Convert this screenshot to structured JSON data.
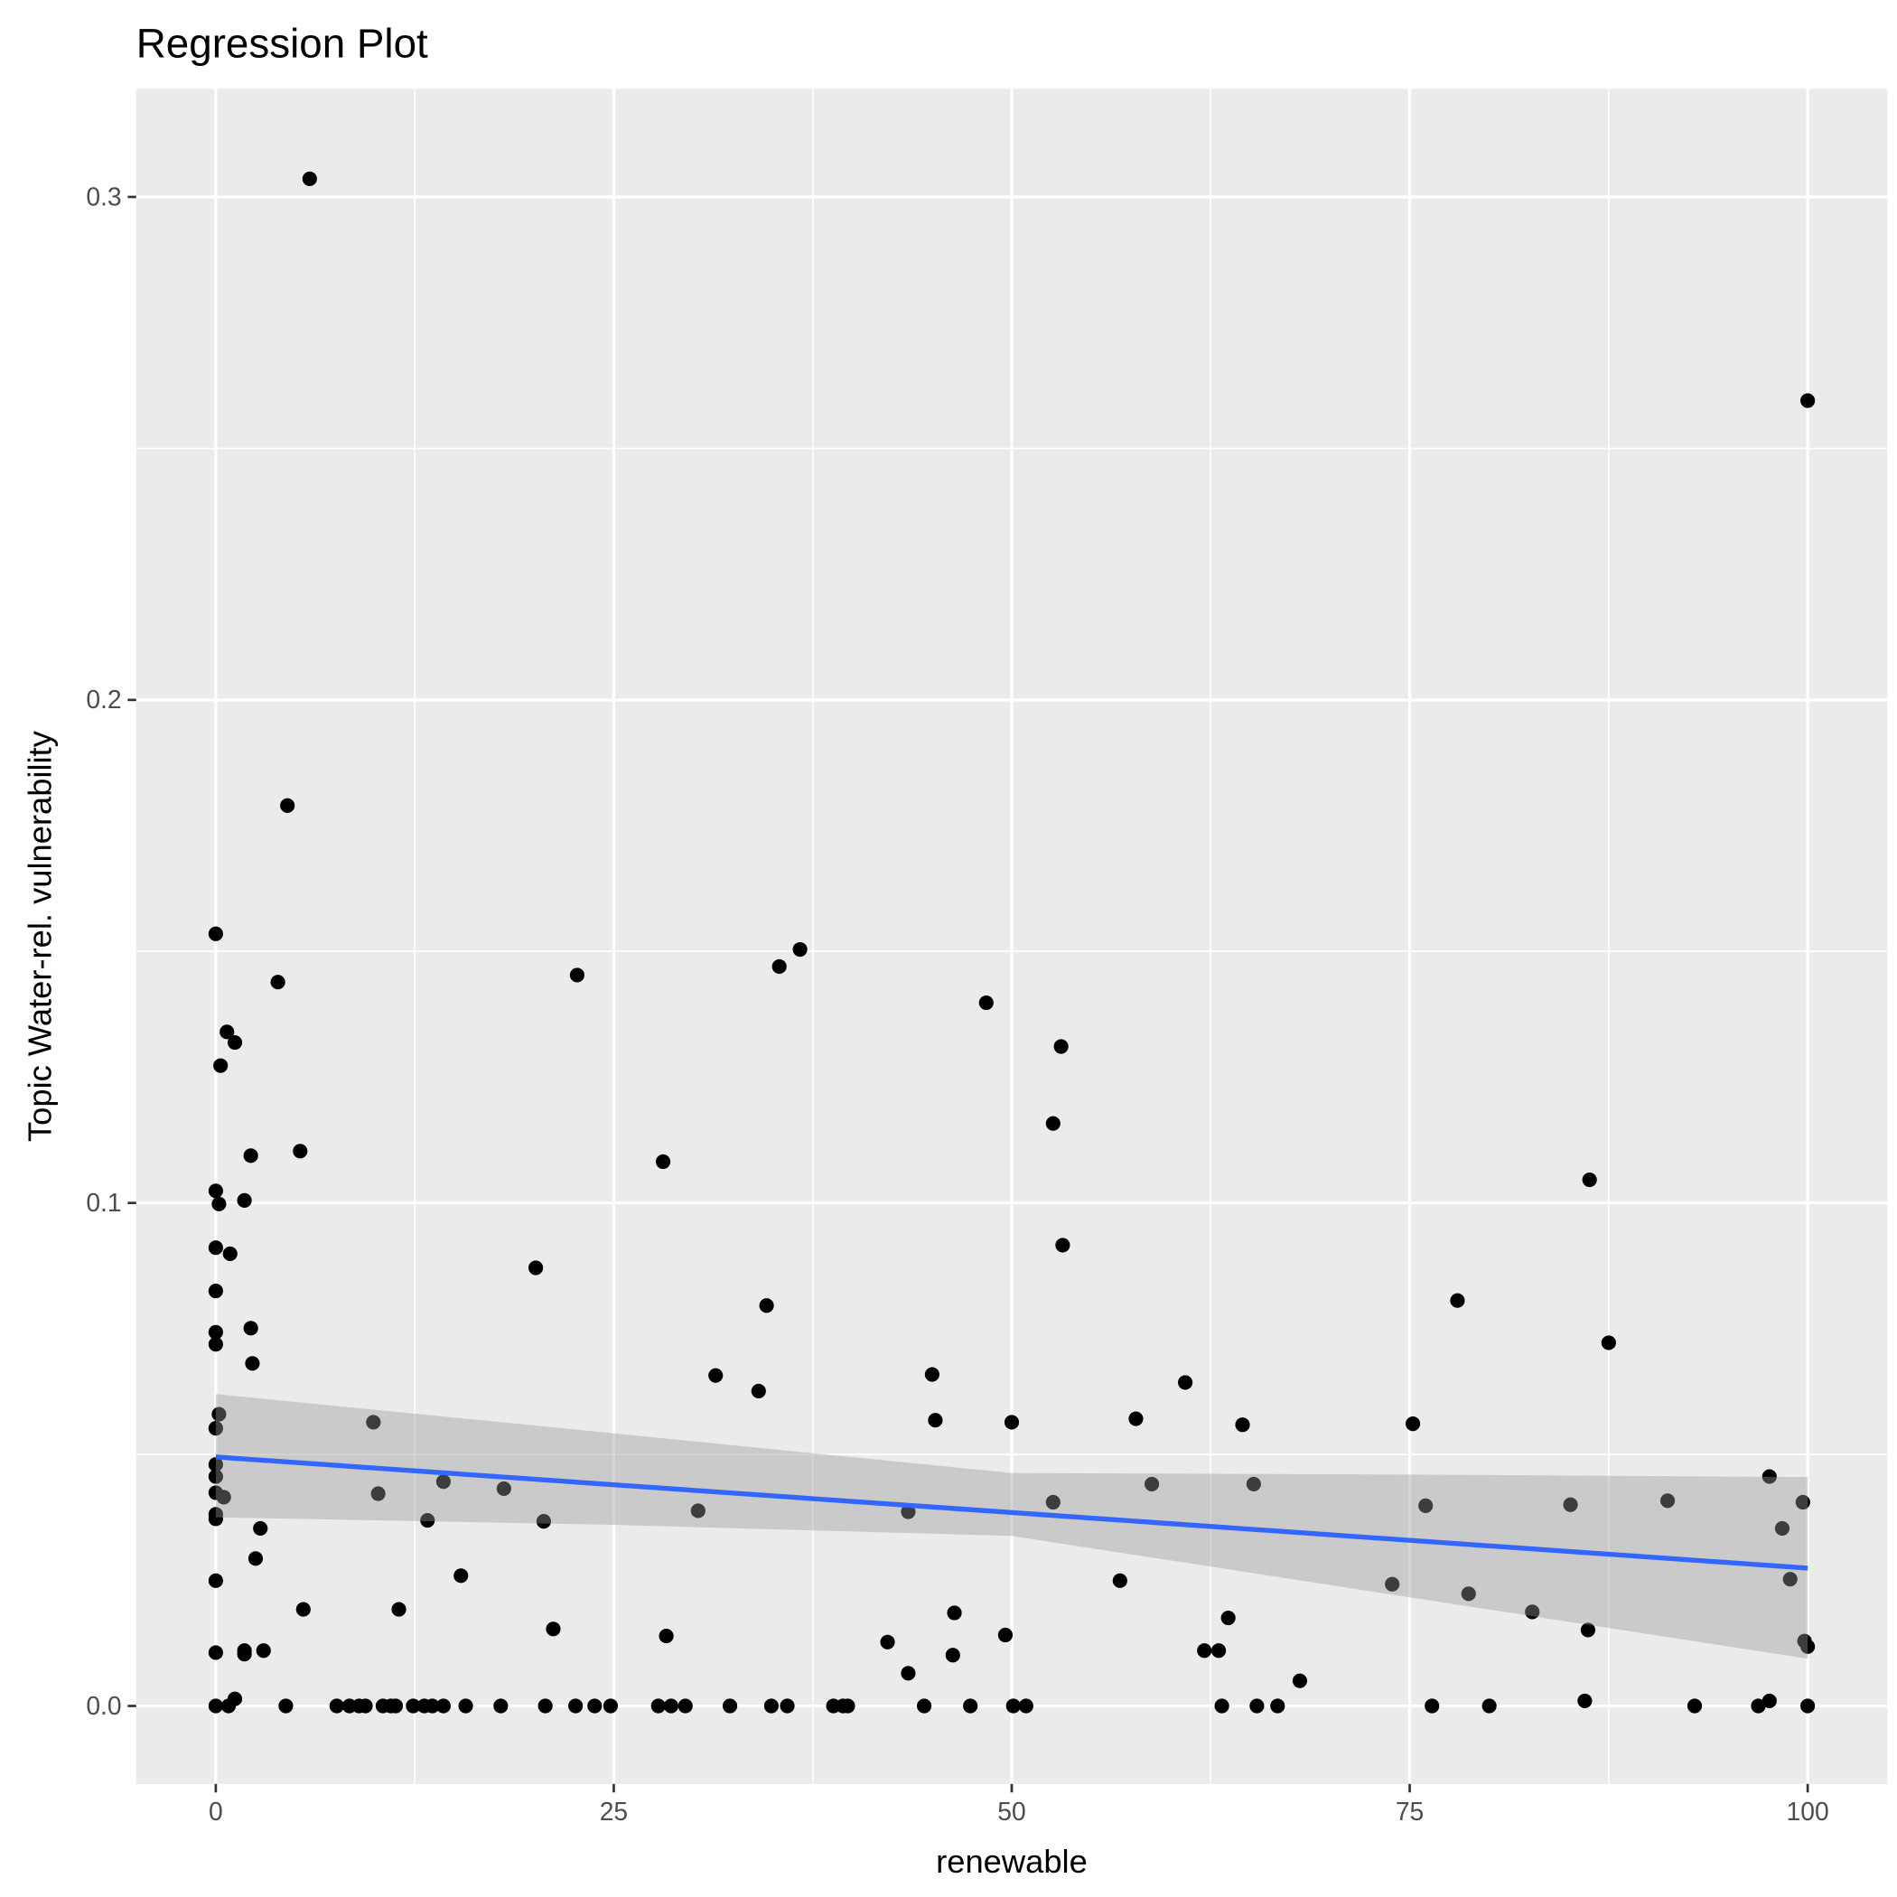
{
  "chart_data": {
    "type": "scatter",
    "title": "Regression Plot",
    "xlabel": "renewable",
    "ylabel": "Topic Water-rel. vulnerability",
    "xlim": [
      -5,
      105
    ],
    "ylim": [
      -0.0155,
      0.3215
    ],
    "xticks": [
      0,
      25,
      50,
      75,
      100
    ],
    "xtick_labels": [
      "0",
      "25",
      "50",
      "75",
      "100"
    ],
    "yticks": [
      0,
      0.1,
      0.2,
      0.3
    ],
    "ytick_labels": [
      "0.0",
      "0.1",
      "0.2",
      "0.3"
    ],
    "grid": true,
    "colors": {
      "points": "#000000",
      "line": "#3366FF",
      "band": "#999999",
      "panel": "#EBEBEB"
    },
    "points": [
      [
        5.9,
        0.3036
      ],
      [
        100,
        0.2595
      ],
      [
        4.5,
        0.179
      ],
      [
        0,
        0.1535
      ],
      [
        3.9,
        0.1439
      ],
      [
        22.7,
        0.1453
      ],
      [
        35.4,
        0.147
      ],
      [
        36.7,
        0.1504
      ],
      [
        48.4,
        0.1398
      ],
      [
        0.7,
        0.134
      ],
      [
        1.2,
        0.1319
      ],
      [
        53.1,
        0.1311
      ],
      [
        0.3,
        0.1273
      ],
      [
        52.6,
        0.1158
      ],
      [
        2.2,
        0.1094
      ],
      [
        5.3,
        0.1103
      ],
      [
        28.1,
        0.1082
      ],
      [
        86.3,
        0.1046
      ],
      [
        0,
        0.1024
      ],
      [
        0.2,
        0.0998
      ],
      [
        1.8,
        0.1005
      ],
      [
        0,
        0.0911
      ],
      [
        0.9,
        0.0899
      ],
      [
        53.2,
        0.0916
      ],
      [
        20.1,
        0.0871
      ],
      [
        0,
        0.0825
      ],
      [
        34.6,
        0.0796
      ],
      [
        78,
        0.0806
      ],
      [
        0,
        0.0743
      ],
      [
        2.2,
        0.0751
      ],
      [
        0,
        0.0719
      ],
      [
        87.5,
        0.0722
      ],
      [
        2.3,
        0.0681
      ],
      [
        31.4,
        0.0657
      ],
      [
        45,
        0.0659
      ],
      [
        60.9,
        0.0643
      ],
      [
        34.1,
        0.0626
      ],
      [
        0.2,
        0.058
      ],
      [
        0,
        0.0552
      ],
      [
        9.9,
        0.0564
      ],
      [
        45.2,
        0.0568
      ],
      [
        50,
        0.0564
      ],
      [
        57.8,
        0.0571
      ],
      [
        64.5,
        0.0559
      ],
      [
        75.2,
        0.0561
      ],
      [
        0,
        0.048
      ],
      [
        0,
        0.0456
      ],
      [
        0,
        0.0424
      ],
      [
        0.5,
        0.0415
      ],
      [
        10.2,
        0.0422
      ],
      [
        14.3,
        0.0446
      ],
      [
        18.1,
        0.0432
      ],
      [
        58.8,
        0.0441
      ],
      [
        65.2,
        0.0441
      ],
      [
        97.6,
        0.0456
      ],
      [
        0,
        0.0381
      ],
      [
        0,
        0.0372
      ],
      [
        2.8,
        0.0353
      ],
      [
        13.3,
        0.0369
      ],
      [
        20.6,
        0.0367
      ],
      [
        30.3,
        0.0388
      ],
      [
        43.5,
        0.0386
      ],
      [
        52.6,
        0.0405
      ],
      [
        76,
        0.0398
      ],
      [
        85.1,
        0.04
      ],
      [
        91.2,
        0.0408
      ],
      [
        99.7,
        0.0405
      ],
      [
        98.4,
        0.0353
      ],
      [
        2.5,
        0.0293
      ],
      [
        0,
        0.0249
      ],
      [
        15.4,
        0.0259
      ],
      [
        56.8,
        0.0249
      ],
      [
        73.9,
        0.0242
      ],
      [
        78.7,
        0.0223
      ],
      [
        98.9,
        0.0252
      ],
      [
        5.5,
        0.0192
      ],
      [
        11.5,
        0.0192
      ],
      [
        46.4,
        0.0185
      ],
      [
        63.6,
        0.0175
      ],
      [
        82.7,
        0.0187
      ],
      [
        21.2,
        0.0153
      ],
      [
        28.3,
        0.0139
      ],
      [
        49.6,
        0.0141
      ],
      [
        86.2,
        0.0151
      ],
      [
        42.2,
        0.0127
      ],
      [
        62.1,
        0.011
      ],
      [
        63,
        0.011
      ],
      [
        99.8,
        0.0129
      ],
      [
        100,
        0.0118
      ],
      [
        0,
        0.0106
      ],
      [
        1.8,
        0.0103
      ],
      [
        1.8,
        0.011
      ],
      [
        3,
        0.011
      ],
      [
        46.3,
        0.0101
      ],
      [
        68.1,
        0.005
      ],
      [
        43.5,
        0.0065
      ],
      [
        1.2,
        0.0014
      ],
      [
        86,
        0.001
      ],
      [
        97.6,
        0.001
      ],
      [
        0,
        0
      ],
      [
        0.8,
        0
      ],
      [
        4.4,
        0
      ],
      [
        7.6,
        0
      ],
      [
        8.4,
        0
      ],
      [
        9,
        0
      ],
      [
        9.4,
        0
      ],
      [
        10.5,
        0
      ],
      [
        11,
        0
      ],
      [
        11.3,
        0
      ],
      [
        12.4,
        0
      ],
      [
        13.1,
        0
      ],
      [
        13.6,
        0
      ],
      [
        14.3,
        0
      ],
      [
        15.7,
        0
      ],
      [
        17.9,
        0
      ],
      [
        20.7,
        0
      ],
      [
        22.6,
        0
      ],
      [
        23.8,
        0
      ],
      [
        24.8,
        0
      ],
      [
        27.8,
        0
      ],
      [
        28.6,
        0
      ],
      [
        29.5,
        0
      ],
      [
        32.3,
        0
      ],
      [
        34.9,
        0
      ],
      [
        35.9,
        0
      ],
      [
        38.8,
        0
      ],
      [
        39.4,
        0
      ],
      [
        39.7,
        0
      ],
      [
        44.5,
        0
      ],
      [
        47.4,
        0
      ],
      [
        50.1,
        0
      ],
      [
        50.9,
        0
      ],
      [
        63.2,
        0
      ],
      [
        65.4,
        0
      ],
      [
        66.7,
        0
      ],
      [
        76.4,
        0
      ],
      [
        80,
        0
      ],
      [
        92.9,
        0
      ],
      [
        96.9,
        0
      ],
      [
        100,
        0
      ]
    ],
    "regression": {
      "x": [
        0,
        100
      ],
      "y": [
        0.0495,
        0.0274
      ]
    },
    "confidence_band": {
      "x": [
        0,
        25,
        50,
        75,
        100
      ],
      "upper": [
        0.062,
        0.0542,
        0.0463,
        0.046,
        0.0455
      ],
      "lower": [
        0.0375,
        0.036,
        0.0338,
        0.0216,
        0.0094
      ]
    }
  }
}
